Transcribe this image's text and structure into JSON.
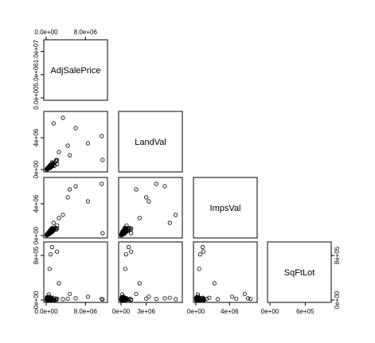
{
  "chart_data": {
    "type": "scatter",
    "kind": "pairs-lower-triangle",
    "variables": [
      "AdjSalePrice",
      "LandVal",
      "ImpsVal",
      "SqFtLot"
    ],
    "colors": {
      "axis": "#000000",
      "points": "#000000",
      "background": "#ffffff"
    },
    "ranges": {
      "AdjSalePrice": [
        0,
        12000000
      ],
      "LandVal": [
        0,
        7000000
      ],
      "ImpsVal": [
        0,
        7000000
      ],
      "SqFtLot": [
        0,
        1000000
      ]
    },
    "ticks": {
      "AdjSalePrice": [
        0,
        8000000
      ],
      "LandVal": [
        0,
        3000000
      ],
      "ImpsVal": [
        0,
        4000000
      ],
      "SqFtLot": [
        0,
        600000
      ]
    },
    "tick_labels": {
      "AdjSalePrice": [
        "0.0e+00",
        "8.0e+06"
      ],
      "LandVal": [
        "0e+00",
        "3e+06"
      ],
      "ImpsVal": [
        "0e+00",
        "4e+06"
      ],
      "SqFtLot": [
        "0e+00",
        "6e+05"
      ]
    },
    "row_ticks": {
      "AdjSalePrice": {
        "values": [
          0,
          5000000,
          10000000
        ],
        "labels": [
          "0.0e+00",
          "5.0e+06",
          "1.0e+07"
        ]
      },
      "LandVal": {
        "values": [
          0,
          4000000
        ],
        "labels": [
          "0e+00",
          "4e+06"
        ]
      },
      "ImpsVal": {
        "values": [
          0,
          4000000
        ],
        "labels": [
          "0e+00",
          "4e+06"
        ]
      },
      "SqFtLot": {
        "values": [
          0,
          800000
        ],
        "labels": [
          "0e+00",
          "8e+05"
        ]
      }
    },
    "cluster": {
      "AdjSalePrice": {
        "median": 450000,
        "spread": 650000,
        "max": 11500000
      },
      "LandVal": {
        "median": 250000,
        "spread": 350000,
        "max": 6500000
      },
      "ImpsVal": {
        "median": 300000,
        "spread": 450000,
        "max": 6600000
      },
      "SqFtLot": {
        "median": 7000,
        "spread": 45000,
        "max": 950000
      }
    },
    "grid": false,
    "legend": "none"
  }
}
